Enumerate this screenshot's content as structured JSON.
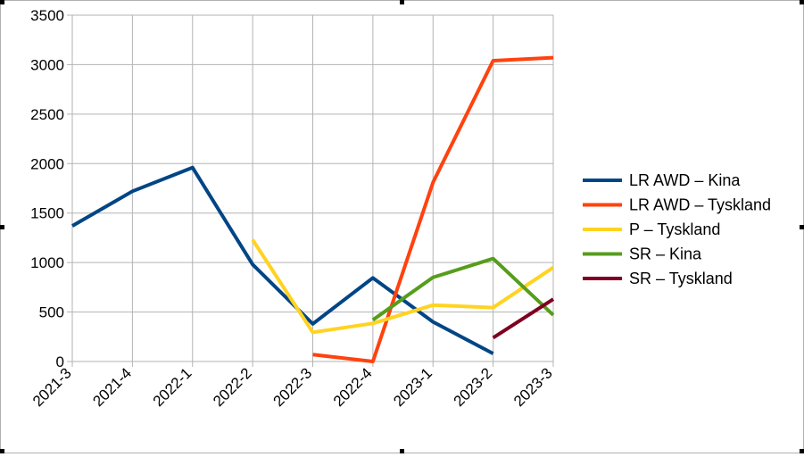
{
  "chart_data": {
    "type": "line",
    "categories": [
      "2021-3",
      "2021-4",
      "2022-1",
      "2022-2",
      "2022-3",
      "2022-4",
      "2023-1",
      "2023-2",
      "2023-3"
    ],
    "ylim": [
      0,
      3500
    ],
    "yticks": [
      0,
      500,
      1000,
      1500,
      2000,
      2500,
      3000,
      3500
    ],
    "grid": true,
    "legend_position": "right",
    "series": [
      {
        "name": "LR AWD – Kina",
        "color": "#004586",
        "values": [
          1370,
          1720,
          1960,
          980,
          380,
          845,
          400,
          80,
          null
        ]
      },
      {
        "name": "LR AWD – Tyskland",
        "color": "#ff420e",
        "values": [
          null,
          null,
          null,
          null,
          70,
          0,
          1810,
          3040,
          3070
        ]
      },
      {
        "name": "P – Tyskland",
        "color": "#ffd320",
        "values": [
          null,
          null,
          null,
          1230,
          295,
          385,
          570,
          545,
          950
        ]
      },
      {
        "name": "SR – Kina",
        "color": "#579d1c",
        "values": [
          null,
          null,
          null,
          null,
          null,
          420,
          850,
          1040,
          470
        ]
      },
      {
        "name": "SR – Tyskland",
        "color": "#7e0021",
        "values": [
          null,
          null,
          null,
          null,
          null,
          null,
          null,
          240,
          630
        ]
      }
    ]
  }
}
